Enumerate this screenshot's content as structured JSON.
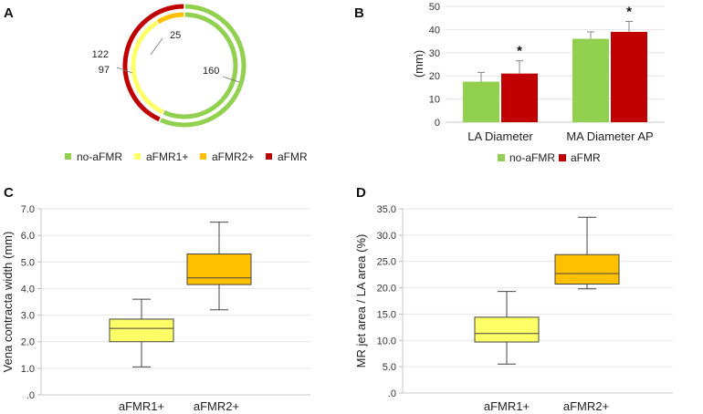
{
  "colors": {
    "no_afmr": "#92d050",
    "afmr1": "#ffff66",
    "afmr2": "#ffc000",
    "afmr": "#c00000"
  },
  "chart_data": [
    {
      "panel": "A",
      "type": "pie",
      "variant": "double-ring donut",
      "rings": [
        {
          "name": "outer",
          "slices": [
            {
              "label": "no-aFMR",
              "value": 160
            },
            {
              "label": "aFMR",
              "value": 122
            }
          ]
        },
        {
          "name": "inner",
          "slices": [
            {
              "label": "no-aFMR",
              "value": 160
            },
            {
              "label": "aFMR1+",
              "value": 97
            },
            {
              "label": "aFMR2+",
              "value": 25
            }
          ]
        }
      ],
      "data_labels": [
        "25",
        "97",
        "122",
        "160"
      ],
      "legend": [
        "no-aFMR",
        "aFMR1+",
        "aFMR2+",
        "aFMR"
      ]
    },
    {
      "panel": "B",
      "type": "bar",
      "categories": [
        "LA Diameter",
        "MA Diameter AP"
      ],
      "series": [
        {
          "name": "no-aFMR",
          "values": [
            17.5,
            36
          ],
          "errors": [
            4,
            3
          ]
        },
        {
          "name": "aFMR",
          "values": [
            21,
            39
          ],
          "errors": [
            5.5,
            4.5
          ]
        }
      ],
      "ylabel": "(mm)",
      "ylim": [
        0,
        50
      ],
      "yticks": [
        "0",
        "10",
        "20",
        "30",
        "40",
        "50"
      ],
      "annotations": [
        "*",
        "*"
      ],
      "legend": [
        "no-aFMR",
        "aFMR"
      ]
    },
    {
      "panel": "C",
      "type": "box",
      "categories": [
        "aFMR1+",
        "aFMR2+"
      ],
      "boxes": [
        {
          "min": 1.05,
          "q1": 2.0,
          "median": 2.5,
          "q3": 2.85,
          "max": 3.6
        },
        {
          "min": 3.2,
          "q1": 4.15,
          "median": 4.4,
          "q3": 5.3,
          "max": 6.5
        }
      ],
      "ylabel": "Vena contracta width (mm)",
      "ylim": [
        0,
        7
      ],
      "yticks": [
        ".0",
        "1.0",
        "2.0",
        "3.0",
        "4.0",
        "5.0",
        "6.0",
        "7.0"
      ]
    },
    {
      "panel": "D",
      "type": "box",
      "categories": [
        "aFMR1+",
        "aFMR2+"
      ],
      "boxes": [
        {
          "min": 5.5,
          "q1": 9.7,
          "median": 11.3,
          "q3": 14.4,
          "max": 19.3
        },
        {
          "min": 19.8,
          "q1": 20.7,
          "median": 22.7,
          "q3": 26.3,
          "max": 33.4
        }
      ],
      "ylabel": "MR jet area / LA area (%)",
      "ylim": [
        0,
        35
      ],
      "yticks": [
        ".0",
        "5.0",
        "10.0",
        "15.0",
        "20.0",
        "25.0",
        "30.0",
        "35.0"
      ]
    }
  ]
}
